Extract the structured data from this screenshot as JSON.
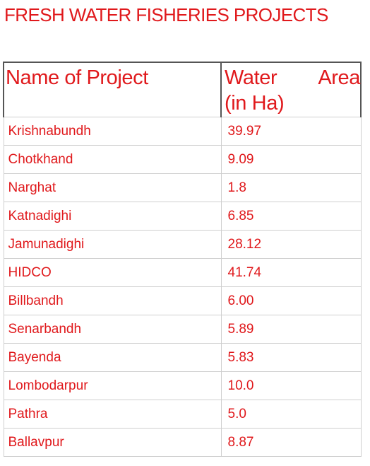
{
  "title": "FRESH WATER FISHERIES PROJECTS",
  "table": {
    "headers": {
      "name": "Name of Project",
      "area_line1_word1": "Water",
      "area_line1_word2": "Area",
      "area_line2": "(in Ha)"
    },
    "rows": [
      {
        "name": "Krishnabundh",
        "area": "39.97"
      },
      {
        "name": "Chotkhand",
        "area": "9.09"
      },
      {
        "name": "Narghat",
        "area": "1.8"
      },
      {
        "name": "Katnadighi",
        "area": "6.85"
      },
      {
        "name": "Jamunadighi",
        "area": "28.12"
      },
      {
        "name": "HIDCO",
        "area": "41.74"
      },
      {
        "name": "Billbandh",
        "area": "6.00"
      },
      {
        "name": "Senarbandh",
        "area": "5.89"
      },
      {
        "name": "Bayenda",
        "area": "5.83"
      },
      {
        "name": "Lombodarpur",
        "area": "10.0"
      },
      {
        "name": "Pathra",
        "area": "5.0"
      },
      {
        "name": "Ballavpur",
        "area": "8.87"
      }
    ]
  },
  "colors": {
    "text": "#e0191c",
    "border": "#cfcfcf",
    "header_border": "#555555"
  }
}
